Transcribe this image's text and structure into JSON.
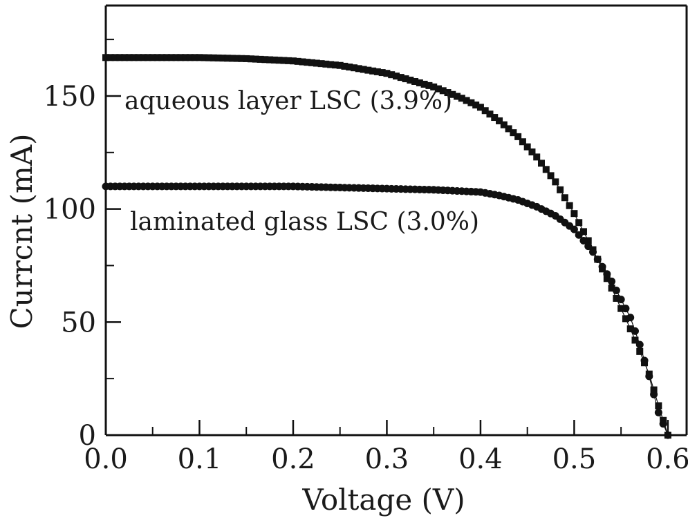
{
  "chart_data": {
    "type": "line",
    "xlabel": "Voltage (V)",
    "ylabel": "Currcnt (mA)",
    "xlim": [
      0.0,
      0.62
    ],
    "ylim": [
      0,
      190
    ],
    "xticks": [
      "0.0",
      "0.1",
      "0.2",
      "0.3",
      "0.4",
      "0.5",
      "0.6"
    ],
    "yticks": [
      "0",
      "50",
      "100",
      "150"
    ],
    "grid": false,
    "annotations": [
      {
        "text": "aqueous layer LSC (3.9%)"
      },
      {
        "text": "laminated glass LSC (3.0%)"
      }
    ],
    "series": [
      {
        "name": "aqueous layer LSC (3.9%)",
        "marker": "square",
        "color": "#111111",
        "x": [
          0.0,
          0.05,
          0.1,
          0.15,
          0.2,
          0.25,
          0.3,
          0.35,
          0.38,
          0.4,
          0.42,
          0.44,
          0.46,
          0.48,
          0.5,
          0.52,
          0.54,
          0.56,
          0.57,
          0.58,
          0.59,
          0.6
        ],
        "y": [
          167,
          167,
          167,
          166.5,
          165.5,
          163.5,
          160,
          154,
          149,
          145,
          139,
          132,
          123,
          112,
          98,
          82,
          65,
          47,
          37,
          27,
          13,
          0
        ]
      },
      {
        "name": "laminated glass LSC (3.0%)",
        "marker": "circle",
        "color": "#111111",
        "x": [
          0.0,
          0.05,
          0.1,
          0.15,
          0.2,
          0.25,
          0.3,
          0.35,
          0.4,
          0.42,
          0.44,
          0.46,
          0.48,
          0.5,
          0.52,
          0.54,
          0.56,
          0.57,
          0.58,
          0.59,
          0.6
        ],
        "y": [
          110,
          110,
          110,
          110,
          110,
          109.5,
          109,
          108.5,
          107.5,
          106,
          104,
          101,
          97,
          91,
          81,
          68,
          52,
          40,
          26,
          10,
          0
        ]
      }
    ]
  }
}
